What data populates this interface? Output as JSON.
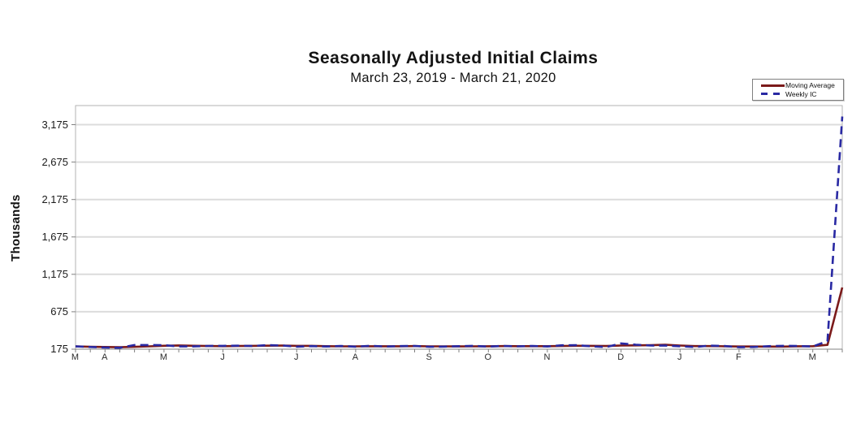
{
  "chart_data": {
    "type": "line",
    "title": "Seasonally Adjusted Initial Claims",
    "subtitle": "March 23, 2019 - March 21, 2020",
    "ylabel": "Thousands",
    "ylim": [
      175,
      3430
    ],
    "y_ticks": [
      175,
      675,
      1175,
      1675,
      2175,
      2675,
      3175
    ],
    "y_tick_labels": [
      "175",
      "675",
      "1,175",
      "1,675",
      "2,175",
      "2,675",
      "3,175"
    ],
    "weeks": 53,
    "x_month_labels": [
      "M",
      "A",
      "M",
      "J",
      "J",
      "A",
      "S",
      "O",
      "N",
      "D",
      "J",
      "F",
      "M"
    ],
    "x_month_positions": [
      0,
      2,
      6,
      10,
      15,
      19,
      24,
      28,
      32,
      37,
      41,
      45,
      50
    ],
    "grid": true,
    "legend_position": "top-right",
    "colors": {
      "gridline": "#dcdcdc",
      "plot_border": "#b3b3b3",
      "axis": "#808080",
      "text": "#141414"
    },
    "series": [
      {
        "name": "Moving Average",
        "color": "#7b1a1a",
        "style": "solid",
        "values": [
          212,
          208,
          204.3,
          201.5,
          206,
          212.5,
          220.3,
          225,
          220.5,
          217.5,
          215.3,
          217.8,
          219,
          221.8,
          223,
          219.8,
          219.5,
          215,
          213.3,
          213.3,
          214.5,
          214.5,
          214.3,
          216.5,
          212.8,
          212.5,
          212.3,
          212.8,
          213.8,
          215.8,
          215.3,
          214.8,
          215,
          217.3,
          221,
          219.8,
          217.8,
          224,
          225.8,
          228.5,
          233.5,
          224,
          216.3,
          216,
          214.5,
          211.3,
          211.3,
          209.3,
          209.8,
          213.8,
          215.5,
          232.3,
          998.3
        ]
      },
      {
        "name": "Weekly IC",
        "color": "#2929a3",
        "style": "dashed",
        "values": [
          212,
          204,
          197,
          193,
          230,
          230,
          228,
          212,
          212,
          218,
          219,
          222,
          217,
          229,
          224,
          209,
          216,
          211,
          217,
          209,
          221,
          211,
          216,
          218,
          206,
          210,
          215,
          220,
          210,
          218,
          213,
          218,
          211,
          227,
          228,
          213,
          203,
          252,
          235,
          224,
          223,
          214,
          204,
          223,
          217,
          201,
          204,
          215,
          219,
          217,
          211,
          282,
          3283
        ]
      }
    ]
  }
}
